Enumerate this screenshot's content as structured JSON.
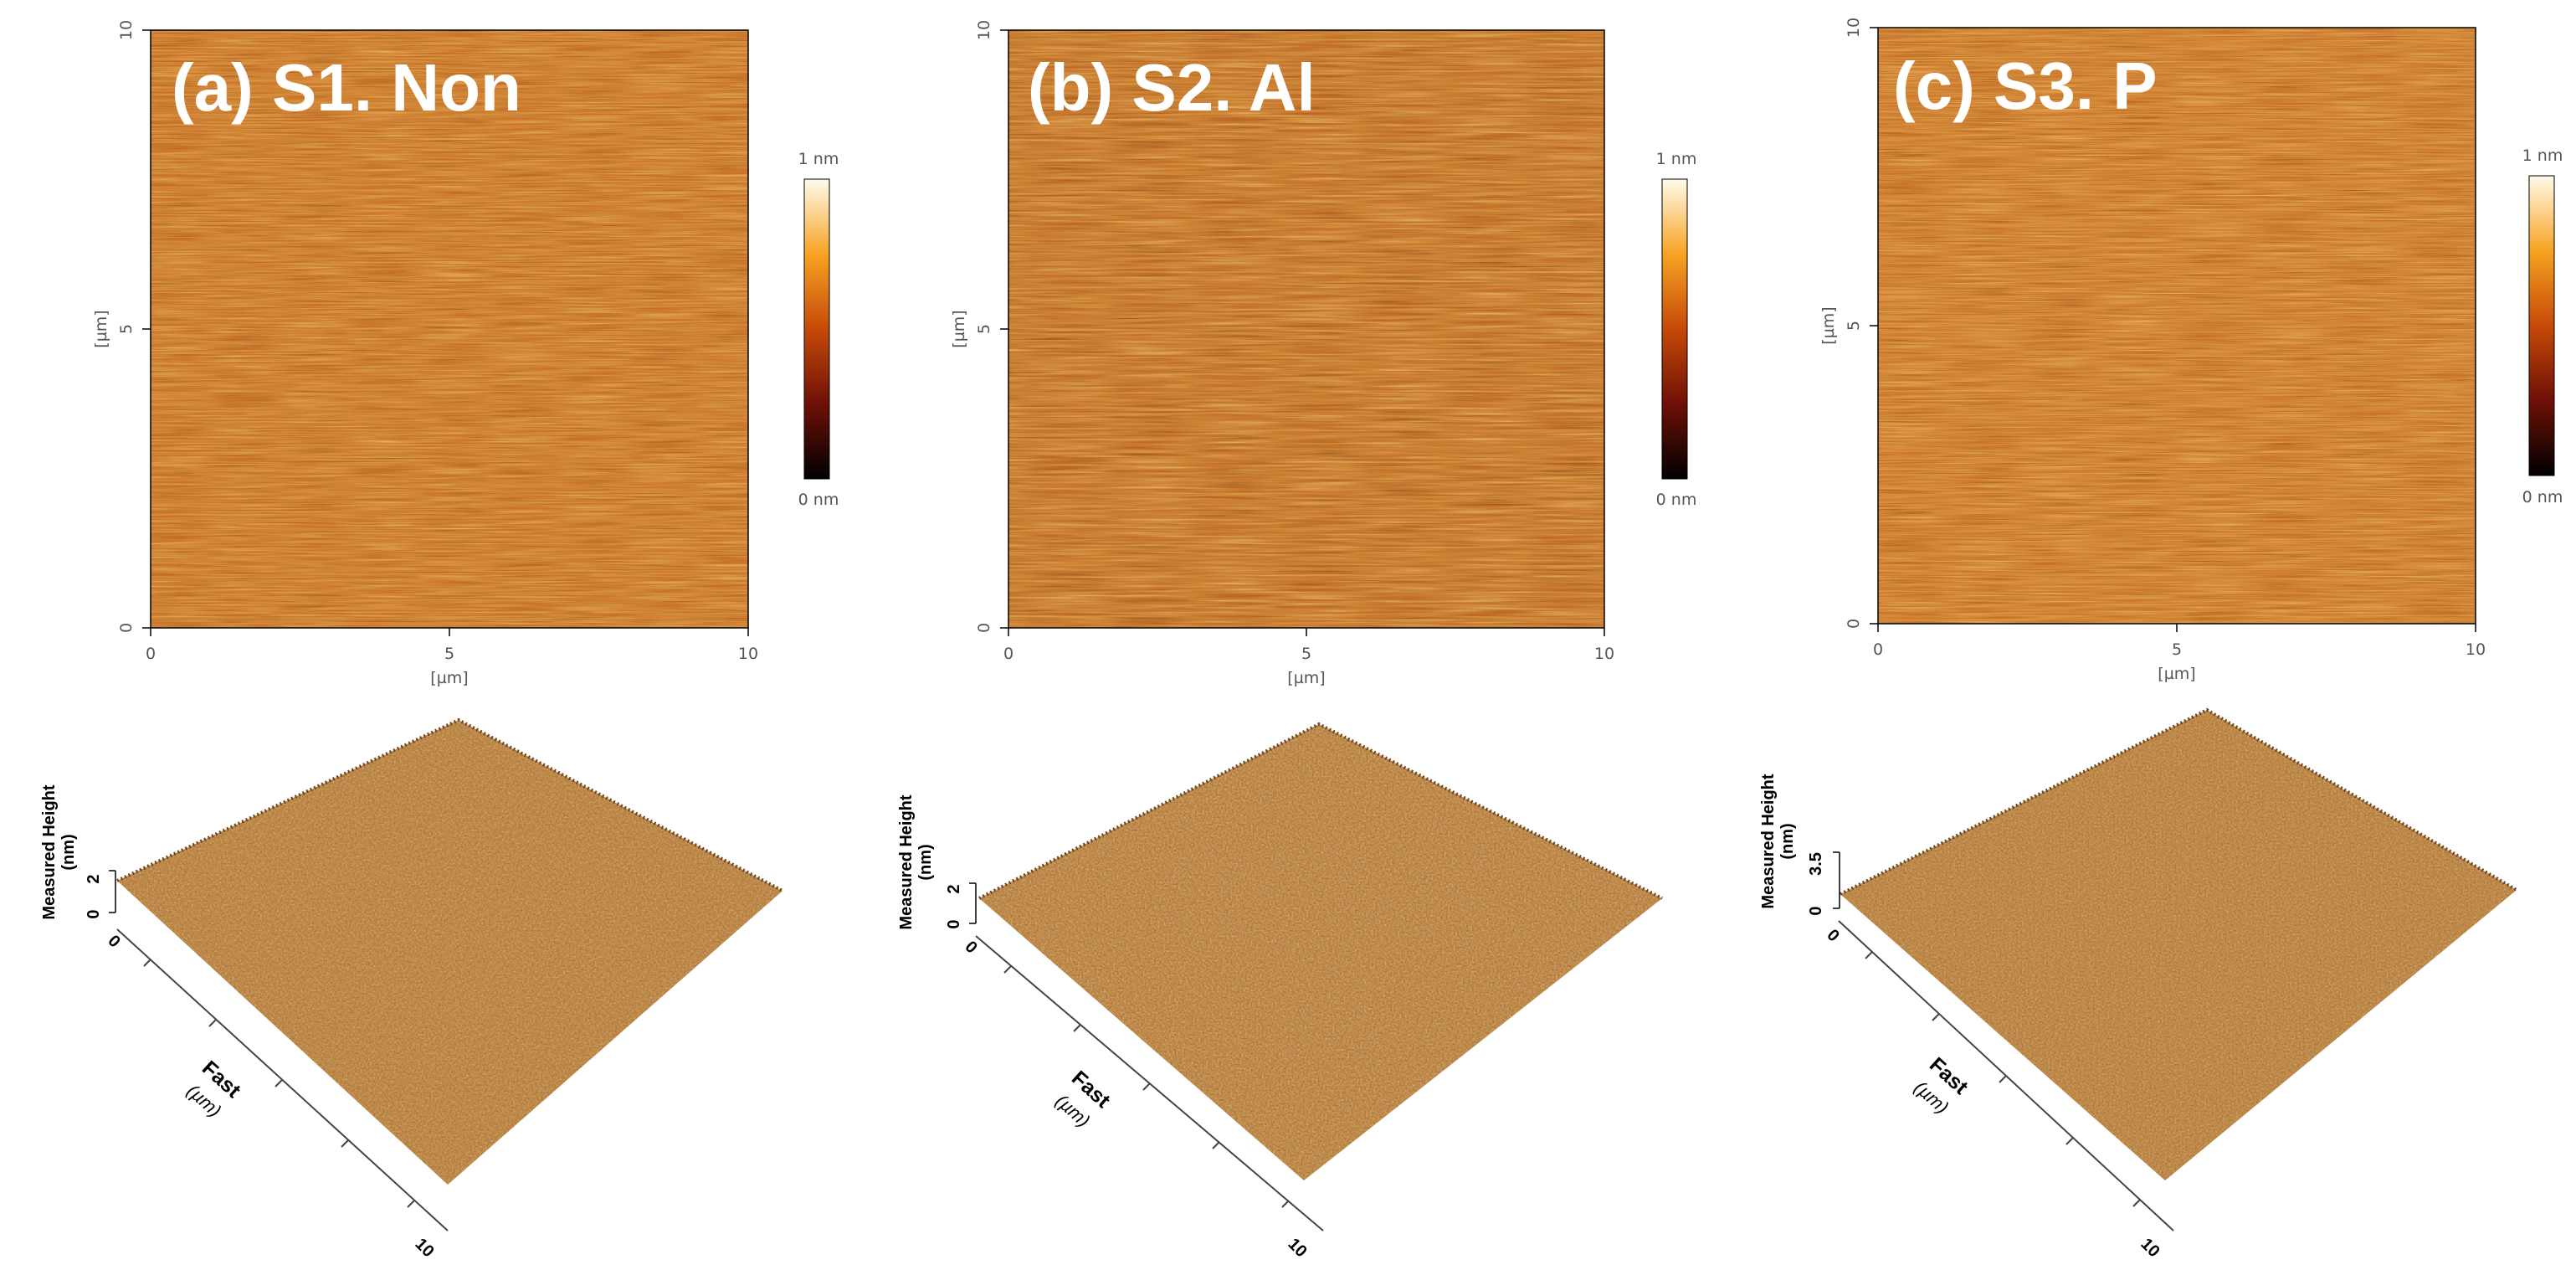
{
  "colors": {
    "afm_base": "#c7681f",
    "afm_dark": "#2a0d04",
    "afm_bright": "#ffd36a",
    "surface3d": "#a86a2c",
    "surface3d_light": "#d2b28a",
    "axis": "#000000"
  },
  "colorbar": {
    "max_label": "1 nm",
    "min_label": "0 nm",
    "stops": [
      "#000000",
      "#6e1006",
      "#c64a08",
      "#f7a322",
      "#fffbea"
    ]
  },
  "panels": [
    {
      "title": "(a) S1. Non",
      "x_ticks": [
        "0",
        "5",
        "10"
      ],
      "y_ticks": [
        "0",
        "5",
        "10"
      ],
      "x_label": "[µm]",
      "y_label": "[µm]",
      "height_axis": {
        "label_line1": "Measured Height",
        "label_line2": "(nm)",
        "tick_top": "2",
        "tick_bottom": "0"
      },
      "fast_axis": {
        "label": "Fast",
        "unit": "(µm)",
        "tick_start": "0",
        "tick_end": "10"
      }
    },
    {
      "title": "(b) S2. Al",
      "x_ticks": [
        "0",
        "5",
        "10"
      ],
      "y_ticks": [
        "0",
        "5",
        "10"
      ],
      "x_label": "[µm]",
      "y_label": "[µm]",
      "height_axis": {
        "label_line1": "Measured Height",
        "label_line2": "(nm)",
        "tick_top": "2",
        "tick_bottom": "0"
      },
      "fast_axis": {
        "label": "Fast",
        "unit": "(µm)",
        "tick_start": "0",
        "tick_end": "10"
      }
    },
    {
      "title": "(c) S3. P",
      "x_ticks": [
        "0",
        "5",
        "10"
      ],
      "y_ticks": [
        "0",
        "5",
        "10"
      ],
      "x_label": "[µm]",
      "y_label": "[µm]",
      "height_axis": {
        "label_line1": "Measured Height",
        "label_line2": "(nm)",
        "tick_top": "3.5",
        "tick_bottom": "0"
      },
      "fast_axis": {
        "label": "Fast",
        "unit": "(µm)",
        "tick_start": "0",
        "tick_end": "10"
      }
    }
  ]
}
